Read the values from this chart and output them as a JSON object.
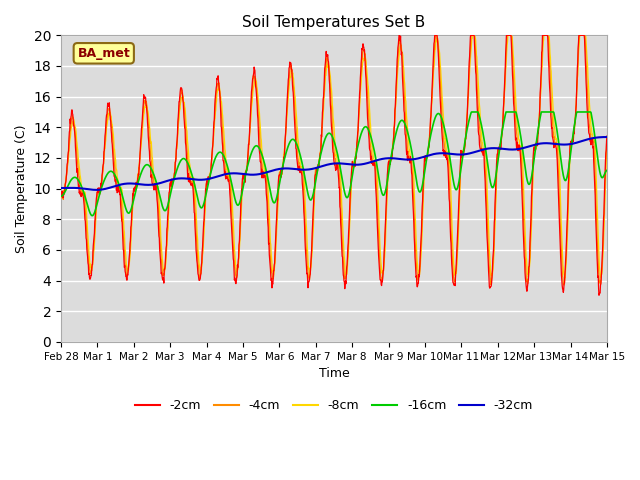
{
  "title": "Soil Temperatures Set B",
  "xlabel": "Time",
  "ylabel": "Soil Temperature (C)",
  "ylim": [
    0,
    20
  ],
  "yticks": [
    0,
    2,
    4,
    6,
    8,
    10,
    12,
    14,
    16,
    18,
    20
  ],
  "annotation_text": "BA_met",
  "annotation_color": "#8B0000",
  "annotation_bg": "#FFFF99",
  "bg_color": "#DCDCDC",
  "line_colors": {
    "-2cm": "#FF0000",
    "-4cm": "#FF8C00",
    "-8cm": "#FFD700",
    "-16cm": "#00CC00",
    "-32cm": "#0000CC"
  },
  "x_tick_labels": [
    "Feb 28",
    "Mar 1",
    "Mar 2",
    "Mar 3",
    "Mar 4",
    "Mar 5",
    "Mar 6",
    "Mar 7",
    "Mar 8",
    "Mar 9",
    "Mar 10",
    "Mar 11",
    "Mar 12",
    "Mar 13",
    "Mar 14",
    "Mar 15"
  ]
}
